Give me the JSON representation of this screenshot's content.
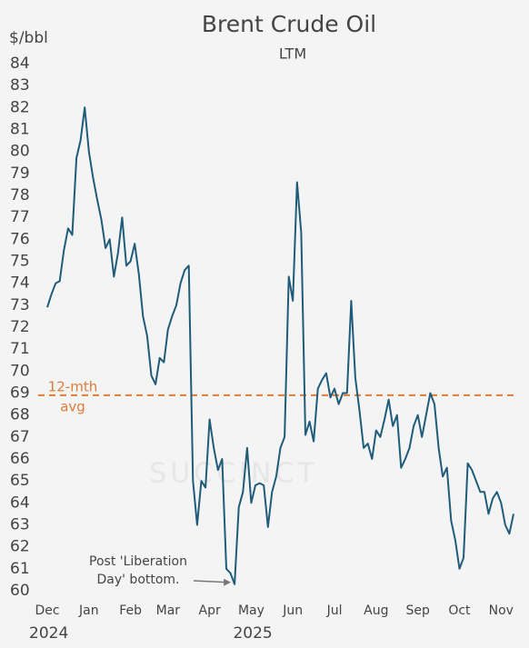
{
  "chart_data": {
    "type": "line",
    "title": "Brent Crude Oil",
    "subtitle": "LTM",
    "y_label": "$/bbl",
    "watermark": "SUCCINCT",
    "series": [
      {
        "name": "Brent",
        "color": "#1f5c7a",
        "values": [
          72.9,
          73.5,
          74.0,
          74.1,
          75.5,
          76.5,
          76.2,
          79.7,
          80.5,
          82.0,
          80.0,
          78.8,
          77.8,
          76.9,
          75.6,
          76.0,
          74.3,
          75.4,
          77.0,
          74.8,
          75.0,
          75.8,
          74.4,
          72.5,
          71.6,
          69.8,
          69.4,
          70.6,
          70.4,
          71.9,
          72.5,
          73.0,
          74.0,
          74.6,
          74.8,
          65.0,
          63.0,
          65.0,
          64.7,
          67.8,
          66.5,
          65.5,
          66.0,
          61.0,
          60.8,
          60.3,
          63.8,
          64.5,
          66.5,
          64.0,
          64.8,
          64.9,
          64.8,
          62.9,
          64.5,
          65.2,
          66.5,
          67.0,
          74.3,
          73.2,
          78.6,
          76.3,
          67.1,
          67.7,
          66.8,
          69.2,
          69.6,
          69.9,
          68.8,
          69.2,
          68.5,
          69.0,
          69.0,
          73.2,
          69.7,
          68.2,
          66.5,
          66.7,
          66.0,
          67.3,
          67.0,
          67.8,
          68.7,
          67.5,
          68.0,
          65.6,
          66.0,
          66.5,
          67.5,
          68.0,
          67.0,
          68.0,
          69.0,
          68.5,
          66.5,
          65.2,
          65.6,
          63.2,
          62.3,
          61.0,
          61.5,
          65.8,
          65.5,
          65.0,
          64.5,
          64.5,
          63.5,
          64.2,
          64.5,
          64.0,
          63.0,
          62.6,
          63.5
        ]
      }
    ],
    "xlim": [
      0,
      112
    ],
    "xticks": [
      {
        "value": 0,
        "label": "Dec"
      },
      {
        "value": 10,
        "label": "Jan"
      },
      {
        "value": 20,
        "label": "Feb"
      },
      {
        "value": 29,
        "label": "Mar"
      },
      {
        "value": 39,
        "label": "Apr"
      },
      {
        "value": 49,
        "label": "May"
      },
      {
        "value": 59,
        "label": "Jun"
      },
      {
        "value": 69,
        "label": "Jul"
      },
      {
        "value": 79,
        "label": "Aug"
      },
      {
        "value": 89,
        "label": "Sep"
      },
      {
        "value": 99,
        "label": "Oct"
      },
      {
        "value": 109,
        "label": "Nov"
      }
    ],
    "year_labels": [
      {
        "value": 0,
        "label": "2024"
      },
      {
        "value": 49,
        "label": "2025"
      }
    ],
    "ylim": [
      60,
      84
    ],
    "yticks": [
      60,
      61,
      62,
      63,
      64,
      65,
      66,
      67,
      68,
      69,
      70,
      71,
      72,
      73,
      74,
      75,
      76,
      77,
      78,
      79,
      80,
      81,
      82,
      83,
      84
    ],
    "reference_line": {
      "value": 68.9,
      "label": [
        "12-mth",
        "avg"
      ],
      "color": "#e07b39"
    },
    "annotation": {
      "text": [
        "Post 'Liberation",
        "Day' bottom."
      ],
      "x": 45,
      "y": 60.3
    },
    "grid": false
  }
}
